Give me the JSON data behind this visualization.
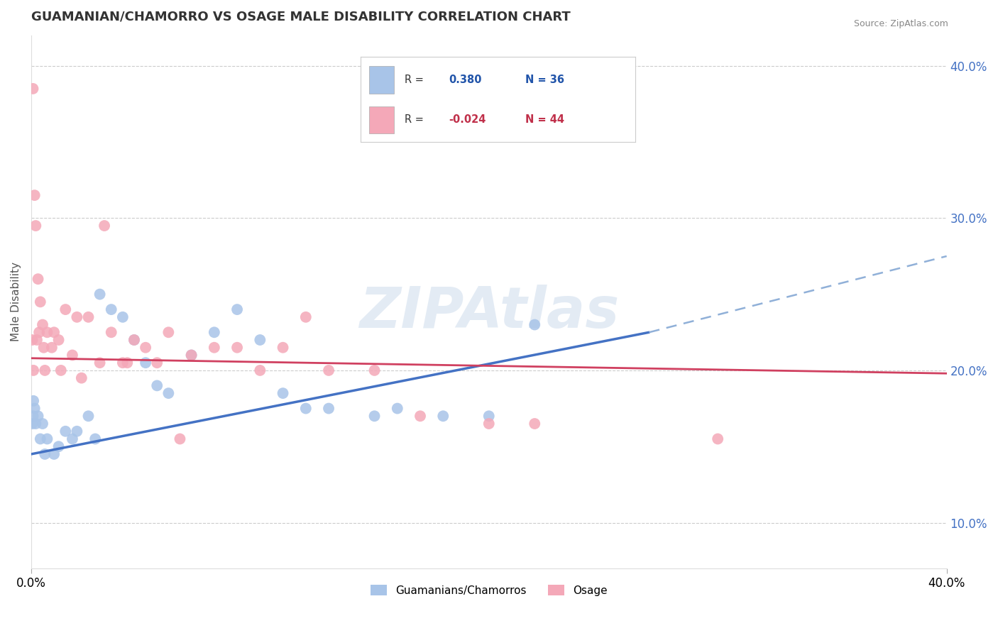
{
  "title": "GUAMANIAN/CHAMORRO VS OSAGE MALE DISABILITY CORRELATION CHART",
  "source": "Source: ZipAtlas.com",
  "ylabel": "Male Disability",
  "xlim": [
    0.0,
    40.0
  ],
  "ylim": [
    7.0,
    42.0
  ],
  "yticks": [
    10.0,
    20.0,
    30.0,
    40.0
  ],
  "legend_blue_R": "0.380",
  "legend_blue_N": "36",
  "legend_pink_R": "-0.024",
  "legend_pink_N": "44",
  "watermark": "ZIPAtlas",
  "blue_color": "#a8c4e8",
  "pink_color": "#f4a8b8",
  "blue_line_color": "#4472c4",
  "blue_dash_color": "#90b0d8",
  "pink_line_color": "#d04060",
  "blue_line_x0": 0.0,
  "blue_line_y0": 14.5,
  "blue_line_x1": 27.0,
  "blue_line_y1": 22.5,
  "blue_dash_x0": 27.0,
  "blue_dash_y0": 22.5,
  "blue_dash_x1": 40.0,
  "blue_dash_y1": 27.5,
  "pink_line_x0": 0.0,
  "pink_line_y0": 20.8,
  "pink_line_x1": 40.0,
  "pink_line_y1": 19.8,
  "blue_dots": [
    [
      0.3,
      17.0
    ],
    [
      0.5,
      16.5
    ],
    [
      0.7,
      15.5
    ],
    [
      1.0,
      14.5
    ],
    [
      1.2,
      15.0
    ],
    [
      1.5,
      16.0
    ],
    [
      1.8,
      15.5
    ],
    [
      2.0,
      16.0
    ],
    [
      2.5,
      17.0
    ],
    [
      3.0,
      25.0
    ],
    [
      3.5,
      24.0
    ],
    [
      4.0,
      23.5
    ],
    [
      4.5,
      22.0
    ],
    [
      5.0,
      20.5
    ],
    [
      5.5,
      19.0
    ],
    [
      6.0,
      18.5
    ],
    [
      7.0,
      21.0
    ],
    [
      8.0,
      22.5
    ],
    [
      9.0,
      24.0
    ],
    [
      10.0,
      22.0
    ],
    [
      11.0,
      18.5
    ],
    [
      12.0,
      17.5
    ],
    [
      13.0,
      17.5
    ],
    [
      15.0,
      17.0
    ],
    [
      16.0,
      17.5
    ],
    [
      18.0,
      17.0
    ],
    [
      20.0,
      17.0
    ],
    [
      22.0,
      23.0
    ],
    [
      0.2,
      16.5
    ],
    [
      0.15,
      17.5
    ],
    [
      0.1,
      18.0
    ],
    [
      0.08,
      17.0
    ],
    [
      0.05,
      16.5
    ],
    [
      0.6,
      14.5
    ],
    [
      0.4,
      15.5
    ],
    [
      2.8,
      15.5
    ]
  ],
  "pink_dots": [
    [
      0.08,
      38.5
    ],
    [
      0.15,
      31.5
    ],
    [
      0.2,
      29.5
    ],
    [
      0.3,
      26.0
    ],
    [
      0.4,
      24.5
    ],
    [
      0.5,
      23.0
    ],
    [
      0.7,
      22.5
    ],
    [
      0.9,
      21.5
    ],
    [
      1.0,
      22.5
    ],
    [
      1.2,
      22.0
    ],
    [
      1.5,
      24.0
    ],
    [
      1.8,
      21.0
    ],
    [
      2.0,
      23.5
    ],
    [
      2.5,
      23.5
    ],
    [
      3.0,
      20.5
    ],
    [
      3.2,
      29.5
    ],
    [
      3.5,
      22.5
    ],
    [
      4.0,
      20.5
    ],
    [
      4.5,
      22.0
    ],
    [
      5.0,
      21.5
    ],
    [
      5.5,
      20.5
    ],
    [
      6.0,
      22.5
    ],
    [
      7.0,
      21.0
    ],
    [
      8.0,
      21.5
    ],
    [
      9.0,
      21.5
    ],
    [
      10.0,
      20.0
    ],
    [
      11.0,
      21.5
    ],
    [
      12.0,
      23.5
    ],
    [
      13.0,
      20.0
    ],
    [
      15.0,
      20.0
    ],
    [
      17.0,
      17.0
    ],
    [
      20.0,
      16.5
    ],
    [
      0.05,
      22.0
    ],
    [
      0.1,
      20.0
    ],
    [
      0.25,
      22.0
    ],
    [
      0.6,
      20.0
    ],
    [
      0.35,
      22.5
    ],
    [
      2.2,
      19.5
    ],
    [
      1.3,
      20.0
    ],
    [
      0.55,
      21.5
    ],
    [
      4.2,
      20.5
    ],
    [
      6.5,
      15.5
    ],
    [
      22.0,
      16.5
    ],
    [
      30.0,
      15.5
    ]
  ]
}
